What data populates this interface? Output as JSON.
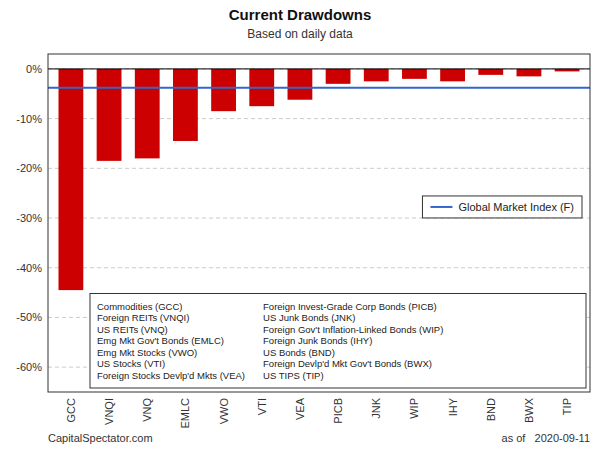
{
  "chart_data": {
    "type": "bar",
    "title": "Current Drawdowns",
    "subtitle": "Based on daily data",
    "categories": [
      "GCC",
      "VNQI",
      "VNQ",
      "EMLC",
      "VWO",
      "VTI",
      "VEA",
      "PICB",
      "JNK",
      "WIP",
      "IHY",
      "BND",
      "BWX",
      "TIP"
    ],
    "values": [
      -44.5,
      -18.5,
      -18.0,
      -14.5,
      -8.5,
      -7.5,
      -6.2,
      -3.0,
      -2.5,
      -2.0,
      -2.5,
      -1.2,
      -1.5,
      -0.5
    ],
    "color": "#cc0000",
    "ylim": [
      -65,
      3
    ],
    "yticks": [
      {
        "value": 0,
        "label": "0%"
      },
      {
        "value": -10,
        "label": "-10%"
      },
      {
        "value": -20,
        "label": "-20%"
      },
      {
        "value": -30,
        "label": "-30%"
      },
      {
        "value": -40,
        "label": "-40%"
      },
      {
        "value": -50,
        "label": "-50%"
      },
      {
        "value": -60,
        "label": "-60%"
      }
    ],
    "grid": true,
    "legend": "right",
    "reference_line": {
      "name": "Global Market Index (F)",
      "value": -3.8,
      "color": "#3366cc"
    },
    "legend_items_left": [
      "Commodities (GCC)",
      "Foreign REITs (VNQI)",
      "US REITs (VNQ)",
      "Emg Mkt Gov't Bonds (EMLC)",
      "Emg Mkt Stocks (VWO)",
      "US Stocks (VTI)",
      "Foreign Stocks Devlp'd Mkts (VEA)"
    ],
    "legend_items_right": [
      "Foreign Invest-Grade Corp Bonds (PICB)",
      "US Junk Bonds (JNK)",
      "Foreign Gov't Inflation-Linked Bonds (WIP)",
      "Foreign Junk Bonds (IHY)",
      "US Bonds (BND)",
      "Foreign Devlp'd Mkt Gov't Bonds (BWX)",
      "US TIPS (TIP)"
    ],
    "footer_left": "CapitalSpectator.com",
    "footer_right": "as of   2020-09-11"
  }
}
